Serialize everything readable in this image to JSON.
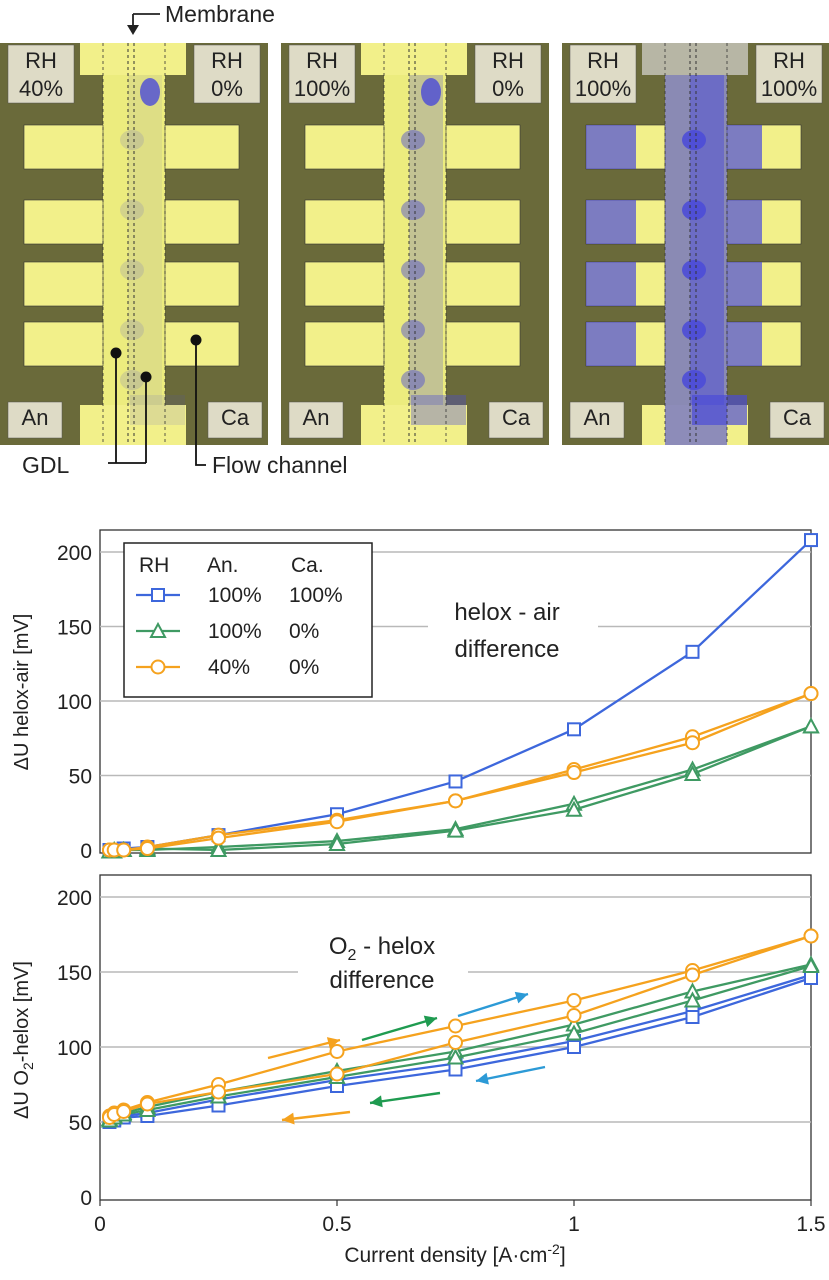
{
  "colors": {
    "blue": "#3d67dc",
    "green": "#3f9a63",
    "orange": "#f5a21e",
    "arrow_green": "#1f9b50",
    "arrow_blue": "#2c9ad6",
    "panel_bg": "#6a6a3a",
    "gdl_yellow": "#ecec7e",
    "water_blue": "#4a4ad8"
  },
  "images": {
    "membrane_label": "Membrane",
    "gdl_label": "GDL",
    "flow_channel_label": "Flow channel",
    "panels": [
      {
        "rh_an_label": "RH",
        "rh_an_value": "40%",
        "rh_ca_label": "RH",
        "rh_ca_value": "0%",
        "an_label": "An",
        "ca_label": "Ca",
        "water": "low"
      },
      {
        "rh_an_label": "RH",
        "rh_an_value": "100%",
        "rh_ca_label": "RH",
        "rh_ca_value": "0%",
        "an_label": "An",
        "ca_label": "Ca",
        "water": "medium"
      },
      {
        "rh_an_label": "RH",
        "rh_an_value": "100%",
        "rh_ca_label": "RH",
        "rh_ca_value": "100%",
        "an_label": "An",
        "ca_label": "Ca",
        "water": "high"
      }
    ]
  },
  "legend": {
    "header_rh": "RH",
    "header_an": "An.",
    "header_ca": "Ca.",
    "rows": [
      {
        "an": "100%",
        "ca": "100%",
        "marker": "square",
        "color": "#3d67dc"
      },
      {
        "an": "100%",
        "ca": "0%",
        "marker": "triangle",
        "color": "#3f9a63"
      },
      {
        "an": "40%",
        "ca": "0%",
        "marker": "circle",
        "color": "#f5a21e"
      }
    ]
  },
  "chart_data": [
    {
      "type": "line",
      "ylabel": "ΔU helox-air [mV]",
      "annotation_line1": "helox - air",
      "annotation_line2": "difference",
      "xlim": [
        0,
        1.5
      ],
      "ylim": [
        0,
        220
      ],
      "xticks": [
        "0",
        "0.5",
        "1",
        "1.5"
      ],
      "yticks": [
        "0",
        "50",
        "100",
        "150",
        "200"
      ],
      "grid": true,
      "series": [
        {
          "legend": "RH An. 100% Ca. 100%",
          "marker": "square",
          "color": "#3d67dc",
          "x": [
            0.02,
            0.03,
            0.05,
            0.1,
            0.25,
            0.5,
            0.75,
            1.0,
            1.25,
            1.5
          ],
          "y": [
            0,
            0,
            1,
            2,
            10,
            24,
            46,
            81,
            133,
            208
          ]
        },
        {
          "legend": "RH An. 100% Ca. 0%",
          "marker": "triangle",
          "color": "#3f9a63",
          "x": [
            0.02,
            0.03,
            0.05,
            0.1,
            0.25,
            0.5,
            0.75,
            1.0,
            1.25,
            1.5
          ],
          "y": [
            -1,
            -1,
            0,
            0,
            2,
            6,
            14,
            31,
            54,
            83
          ]
        },
        {
          "legend": "RH An. 100% Ca. 0%",
          "marker": "triangle",
          "color": "#3f9a63",
          "x": [
            0.02,
            0.03,
            0.05,
            0.1,
            0.25,
            0.5,
            0.75,
            1.0,
            1.25,
            1.5
          ],
          "y": [
            -1,
            0,
            0,
            1,
            0,
            4,
            13,
            27,
            51,
            83
          ]
        },
        {
          "legend": "RH An. 40% Ca. 0%",
          "marker": "circle",
          "color": "#f5a21e",
          "x": [
            0.02,
            0.03,
            0.05,
            0.1,
            0.25,
            0.5,
            0.75,
            1.0,
            1.25,
            1.5
          ],
          "y": [
            0,
            0,
            0,
            2,
            10,
            20,
            33,
            54,
            76,
            105
          ]
        },
        {
          "legend": "RH An. 40% Ca. 0%",
          "marker": "circle",
          "color": "#f5a21e",
          "x": [
            0.02,
            0.03,
            0.05,
            0.1,
            0.25,
            0.5,
            0.75,
            1.0,
            1.25,
            1.5
          ],
          "y": [
            0,
            0,
            0,
            1,
            8,
            19,
            33,
            52,
            72,
            105
          ]
        }
      ]
    },
    {
      "type": "line",
      "xlabel": "Current density [A·cm",
      "xlabel_sup": "-2",
      "xlabel_tail": "]",
      "ylabel_pre": "ΔU O",
      "ylabel_sub": "2",
      "ylabel_post": "-helox [mV]",
      "annotation_line1_pre": "O",
      "annotation_line1_sub": "2",
      "annotation_line1_post": " - helox",
      "annotation_line2": "difference",
      "xlim": [
        0,
        1.5
      ],
      "ylim": [
        0,
        220
      ],
      "xticks": [
        "0",
        "0.5",
        "1",
        "1.5"
      ],
      "yticks": [
        "0",
        "50",
        "100",
        "150",
        "200"
      ],
      "grid": true,
      "series": [
        {
          "legend": "RH An. 100% Ca. 100%",
          "marker": "square",
          "color": "#3d67dc",
          "x": [
            0.02,
            0.03,
            0.05,
            0.1,
            0.25,
            0.5,
            0.75,
            1.0,
            1.25,
            1.5
          ],
          "y": [
            51,
            52,
            54,
            56,
            65,
            78,
            89,
            104,
            124,
            148
          ]
        },
        {
          "legend": "RH An. 100% Ca. 100%",
          "marker": "square",
          "color": "#3d67dc",
          "x": [
            0.02,
            0.03,
            0.05,
            0.1,
            0.25,
            0.5,
            0.75,
            1.0,
            1.25,
            1.5
          ],
          "y": [
            50,
            51,
            53,
            54,
            61,
            74,
            85,
            100,
            120,
            146
          ]
        },
        {
          "legend": "RH An. 100% Ca. 0%",
          "marker": "triangle",
          "color": "#3f9a63",
          "x": [
            0.02,
            0.03,
            0.05,
            0.1,
            0.25,
            0.5,
            0.75,
            1.0,
            1.25,
            1.5
          ],
          "y": [
            52,
            54,
            56,
            60,
            70,
            84,
            97,
            115,
            137,
            155
          ]
        },
        {
          "legend": "RH An. 100% Ca. 0%",
          "marker": "triangle",
          "color": "#3f9a63",
          "x": [
            0.02,
            0.03,
            0.05,
            0.1,
            0.25,
            0.5,
            0.75,
            1.0,
            1.25,
            1.5
          ],
          "y": [
            51,
            53,
            55,
            58,
            67,
            80,
            93,
            109,
            131,
            154
          ]
        },
        {
          "legend": "RH An. 40% Ca. 0%",
          "marker": "circle",
          "color": "#f5a21e",
          "x": [
            0.02,
            0.03,
            0.05,
            0.1,
            0.25,
            0.5,
            0.75,
            1.0,
            1.25,
            1.5
          ],
          "y": [
            54,
            56,
            58,
            63,
            75,
            97,
            114,
            131,
            151,
            174
          ]
        },
        {
          "legend": "RH An. 40% Ca. 0%",
          "marker": "circle",
          "color": "#f5a21e",
          "x": [
            0.02,
            0.03,
            0.05,
            0.1,
            0.25,
            0.5,
            0.75,
            1.0,
            1.25,
            1.5
          ],
          "y": [
            53,
            55,
            57,
            62,
            70,
            82,
            103,
            121,
            148,
            174
          ]
        }
      ]
    }
  ]
}
